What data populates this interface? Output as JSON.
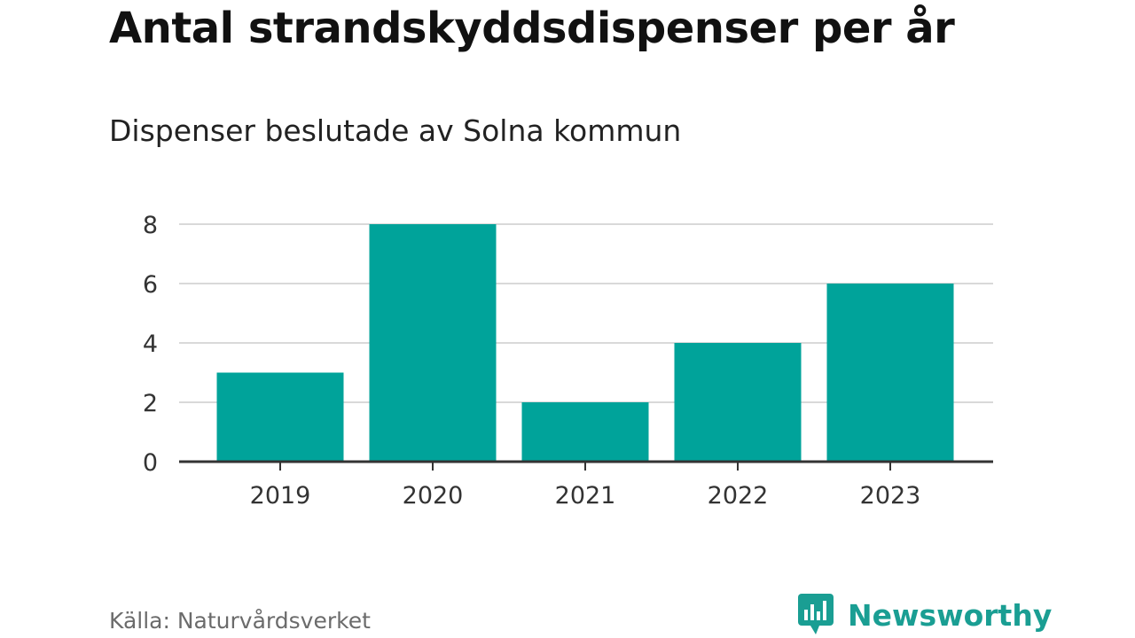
{
  "title": "Antal strandskyddsdispenser per år",
  "subtitle": "Dispenser beslutade av Solna kommun",
  "source": "Källa: Naturvårdsverket",
  "brand": {
    "name": "Newsworthy",
    "icon": "newsworthy-logo-icon",
    "color": "#1a9e93"
  },
  "colors": {
    "bar": "#00a39a",
    "grid": "#d9d9d9",
    "axis": "#333333",
    "tick_text": "#333333"
  },
  "chart_data": {
    "type": "bar",
    "categories": [
      "2019",
      "2020",
      "2021",
      "2022",
      "2023"
    ],
    "values": [
      3,
      8,
      2,
      4,
      6
    ],
    "yticks": [
      0,
      2,
      4,
      6,
      8
    ],
    "ylim": [
      0,
      8
    ],
    "grid": true,
    "legend": "none"
  }
}
